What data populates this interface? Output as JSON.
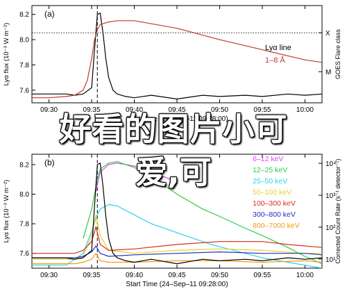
{
  "overlay": {
    "line1": "好看的图片小可",
    "line2": "爱,可"
  },
  "chart_data": [
    {
      "type": "line",
      "panel_label": "(a)",
      "ylabel": "Lyα flux (10⁻³ W m⁻²)",
      "ylabel2": "GOES Flare class",
      "xlabel": "Start Time (24–Sep–11 09:28:00)",
      "x_ticks": [
        "09:30",
        "09:35",
        "09:40",
        "09:45",
        "09:50",
        "09:55",
        "10:00"
      ],
      "y_ticks": [
        "7.6",
        "7.8",
        "8.0",
        "8.2"
      ],
      "y2_ticks": [
        "X",
        "M"
      ],
      "ylim": [
        7.5,
        8.27
      ],
      "xlim": [
        "09:28",
        "10:02"
      ],
      "marker_time": "09:35:40",
      "legend": [
        {
          "label": "Lyα line",
          "color": "#000000"
        },
        {
          "label": "1–8 Å",
          "color": "#c0392b"
        }
      ],
      "series": [
        {
          "name": "Lyα line",
          "color": "#000000",
          "x": [
            "09:28",
            "09:30",
            "09:32",
            "09:33",
            "09:34",
            "09:35",
            "09:35:20",
            "09:35:40",
            "09:36",
            "09:36:20",
            "09:36:40",
            "09:37",
            "09:37:30",
            "09:38",
            "09:39",
            "09:40",
            "09:42",
            "09:45",
            "09:48",
            "09:50",
            "09:53",
            "09:55",
            "09:58",
            "10:00",
            "10:02"
          ],
          "values": [
            7.57,
            7.57,
            7.57,
            7.56,
            7.57,
            7.62,
            7.92,
            8.2,
            8.21,
            8.05,
            7.85,
            7.7,
            7.6,
            7.57,
            7.55,
            7.54,
            7.56,
            7.53,
            7.56,
            7.55,
            7.56,
            7.55,
            7.57,
            7.56,
            7.57
          ]
        },
        {
          "name": "1–8 Å",
          "color": "#c0392b",
          "x": [
            "09:28",
            "09:30",
            "09:32",
            "09:33",
            "09:34",
            "09:34:30",
            "09:35",
            "09:35:20",
            "09:35:40",
            "09:36",
            "09:37",
            "09:38",
            "09:40",
            "09:45",
            "09:50",
            "09:55",
            "10:00",
            "10:02"
          ],
          "values": [
            7.54,
            7.54,
            7.55,
            7.56,
            7.6,
            7.68,
            7.85,
            8.0,
            8.08,
            8.12,
            8.14,
            8.15,
            8.15,
            8.09,
            8.0,
            7.92,
            7.84,
            7.82
          ]
        }
      ]
    },
    {
      "type": "line",
      "panel_label": "(b)",
      "ylabel": "Lyα flux (10⁻³ W m⁻²)",
      "ylabel2": "Corrected Count Rate (s⁻¹ detector⁻¹)",
      "xlabel": "Start Time (24–Sep–11 09:28:00)",
      "x_ticks": [
        "09:30",
        "09:35",
        "09:40",
        "09:45",
        "09:50",
        "09:55",
        "10:00"
      ],
      "y_ticks": [
        "7.6",
        "7.8",
        "8.0",
        "8.2"
      ],
      "y2_ticks": [
        "10⁴",
        "10³",
        "10²",
        "10¹"
      ],
      "ylim": [
        7.5,
        8.27
      ],
      "xlim": [
        "09:28",
        "10:02"
      ],
      "marker_time": "09:35:40",
      "legend": [
        {
          "label": "6–12 keV",
          "color": "#e040fb"
        },
        {
          "label": "12–25 keV",
          "color": "#2ecc40"
        },
        {
          "label": "25–50 keV",
          "color": "#29d4e6"
        },
        {
          "label": "50–100 keV",
          "color": "#e6d22a"
        },
        {
          "label": "100–300 keV",
          "color": "#d62c1a"
        },
        {
          "label": "300–800 keV",
          "color": "#2233bb"
        },
        {
          "label": "800–7000 keV",
          "color": "#f39c12"
        }
      ],
      "series": [
        {
          "name": "6–12 keV",
          "color": "#e040fb",
          "x": [
            "09:35:30",
            "09:36",
            "09:37",
            "09:38",
            "09:40",
            "09:43",
            "09:45"
          ],
          "values": [
            8.02,
            8.15,
            8.2,
            8.21,
            8.19,
            8.13,
            8.08
          ]
        },
        {
          "name": "12–25 keV",
          "color": "#2ecc40",
          "x": [
            "09:34",
            "09:35",
            "09:35:40",
            "09:36",
            "09:37",
            "09:38",
            "09:39",
            "09:40",
            "09:42",
            "09:45",
            "09:48",
            "09:50",
            "09:53",
            "09:55",
            "09:58",
            "10:00",
            "10:02"
          ],
          "values": [
            7.7,
            7.9,
            8.1,
            8.17,
            8.21,
            8.22,
            8.2,
            8.18,
            8.12,
            8.0,
            7.9,
            7.85,
            7.77,
            7.72,
            7.64,
            7.58,
            7.53
          ]
        },
        {
          "name": "25–50 keV",
          "color": "#29d4e6",
          "x": [
            "09:28",
            "09:32",
            "09:34",
            "09:35",
            "09:35:40",
            "09:36",
            "09:37",
            "09:38",
            "09:40",
            "09:42",
            "09:45",
            "09:47",
            "09:49",
            "09:51",
            "09:53",
            "09:55",
            "09:57",
            "09:59",
            "10:01",
            "10:02"
          ],
          "values": [
            7.52,
            7.52,
            7.6,
            7.75,
            7.86,
            7.9,
            7.93,
            7.92,
            7.86,
            7.8,
            7.74,
            7.7,
            7.66,
            7.63,
            7.6,
            7.57,
            7.55,
            7.53,
            7.51,
            7.5
          ]
        },
        {
          "name": "50–100 keV",
          "color": "#e6d22a",
          "x": [
            "09:28",
            "09:33",
            "09:34",
            "09:35",
            "09:35:30",
            "09:36",
            "09:37",
            "09:40",
            "09:45",
            "09:50",
            "09:55",
            "10:00",
            "10:02"
          ],
          "values": [
            7.56,
            7.56,
            7.58,
            7.72,
            7.86,
            7.72,
            7.62,
            7.6,
            7.62,
            7.63,
            7.62,
            7.6,
            7.6
          ]
        },
        {
          "name": "100–300 keV",
          "color": "#d62c1a",
          "x": [
            "09:28",
            "09:33",
            "09:34",
            "09:35",
            "09:35:30",
            "09:36",
            "09:37",
            "09:40",
            "09:45",
            "09:50",
            "09:55",
            "09:58",
            "10:02"
          ],
          "values": [
            7.6,
            7.6,
            7.62,
            7.68,
            7.78,
            7.66,
            7.62,
            7.63,
            7.66,
            7.68,
            7.68,
            7.66,
            7.64
          ]
        },
        {
          "name": "300–800 keV",
          "color": "#2233bb",
          "x": [
            "09:28",
            "09:33",
            "09:34",
            "09:35",
            "09:35:30",
            "09:36",
            "09:37",
            "09:40",
            "09:45",
            "09:50",
            "09:55",
            "10:00",
            "10:02"
          ],
          "values": [
            7.57,
            7.57,
            7.58,
            7.61,
            7.65,
            7.6,
            7.58,
            7.59,
            7.6,
            7.61,
            7.6,
            7.6,
            7.59
          ]
        },
        {
          "name": "800–7000 keV",
          "color": "#f39c12",
          "x": [
            "09:28",
            "09:33",
            "09:34",
            "09:35",
            "09:35:30",
            "09:36",
            "09:37",
            "09:40",
            "09:45",
            "09:50",
            "09:55",
            "10:00",
            "10:02"
          ],
          "values": [
            7.53,
            7.53,
            7.54,
            7.56,
            7.6,
            7.55,
            7.54,
            7.54,
            7.55,
            7.55,
            7.54,
            7.55,
            7.54
          ]
        },
        {
          "name": "Lyα line",
          "color": "#000000",
          "x": [
            "09:28",
            "09:30",
            "09:32",
            "09:33",
            "09:34",
            "09:35",
            "09:35:20",
            "09:35:40",
            "09:36",
            "09:36:20",
            "09:36:40",
            "09:37",
            "09:37:30",
            "09:38",
            "09:39",
            "09:40",
            "09:42",
            "09:45",
            "09:48",
            "09:50",
            "09:53",
            "09:55",
            "09:58",
            "10:00",
            "10:02"
          ],
          "values": [
            7.57,
            7.57,
            7.57,
            7.56,
            7.57,
            7.62,
            7.92,
            8.2,
            8.21,
            8.05,
            7.85,
            7.7,
            7.6,
            7.57,
            7.55,
            7.54,
            7.56,
            7.53,
            7.56,
            7.55,
            7.56,
            7.55,
            7.57,
            7.56,
            7.57
          ]
        }
      ]
    }
  ]
}
